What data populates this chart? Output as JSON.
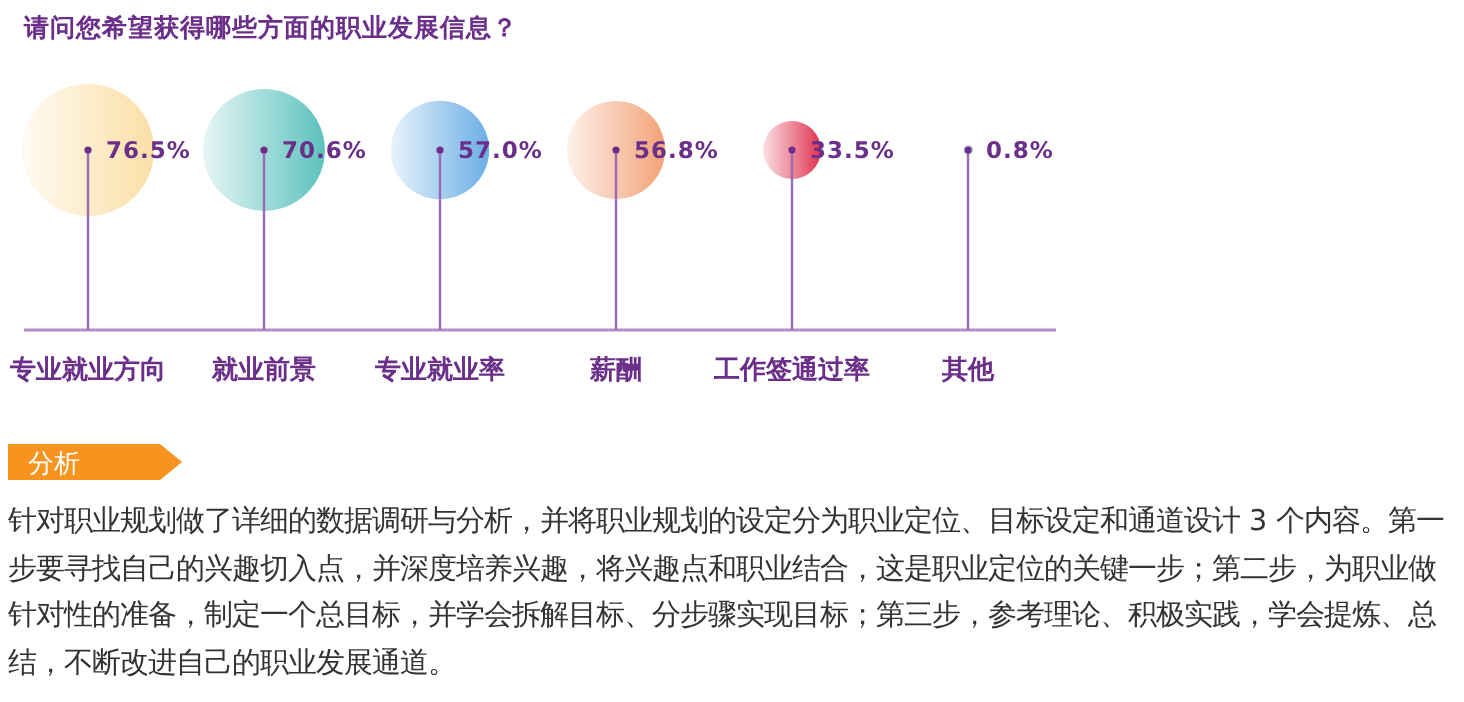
{
  "chart_data": {
    "type": "other",
    "title": "请问您希望获得哪些方面的职业发展信息？",
    "categories": [
      "专业就业方向",
      "就业前景",
      "专业就业率",
      "薪酬",
      "工作签通过率",
      "其他"
    ],
    "values": [
      76.5,
      70.6,
      57.0,
      56.8,
      33.5,
      0.8
    ],
    "value_labels": [
      "76.5%",
      "70.6%",
      "57.0%",
      "56.8%",
      "33.5%",
      "0.8%"
    ],
    "colors": [
      "#fbdfa6",
      "#5cc2bd",
      "#6aaee6",
      "#f2a276",
      "#e0344f",
      "#b8b0c8"
    ],
    "annotations": [
      "分析",
      "针对职业规划做了详细的数据调研与分析，并将职业规划的设定分为职业定位、目标设定和通道设计 3 个内容。第一步要寻找自己的兴趣切入点，并深度培养兴趣，将兴趣点和职业结合，这是职业定位的关键一步；第二步，为职业做针对性的准备，制定一个总目标，并学会拆解目标、分步骤实现目标；第三步，参考理论、积极实践，学会提炼、总结，不断改进自己的职业发展通道。"
    ]
  }
}
